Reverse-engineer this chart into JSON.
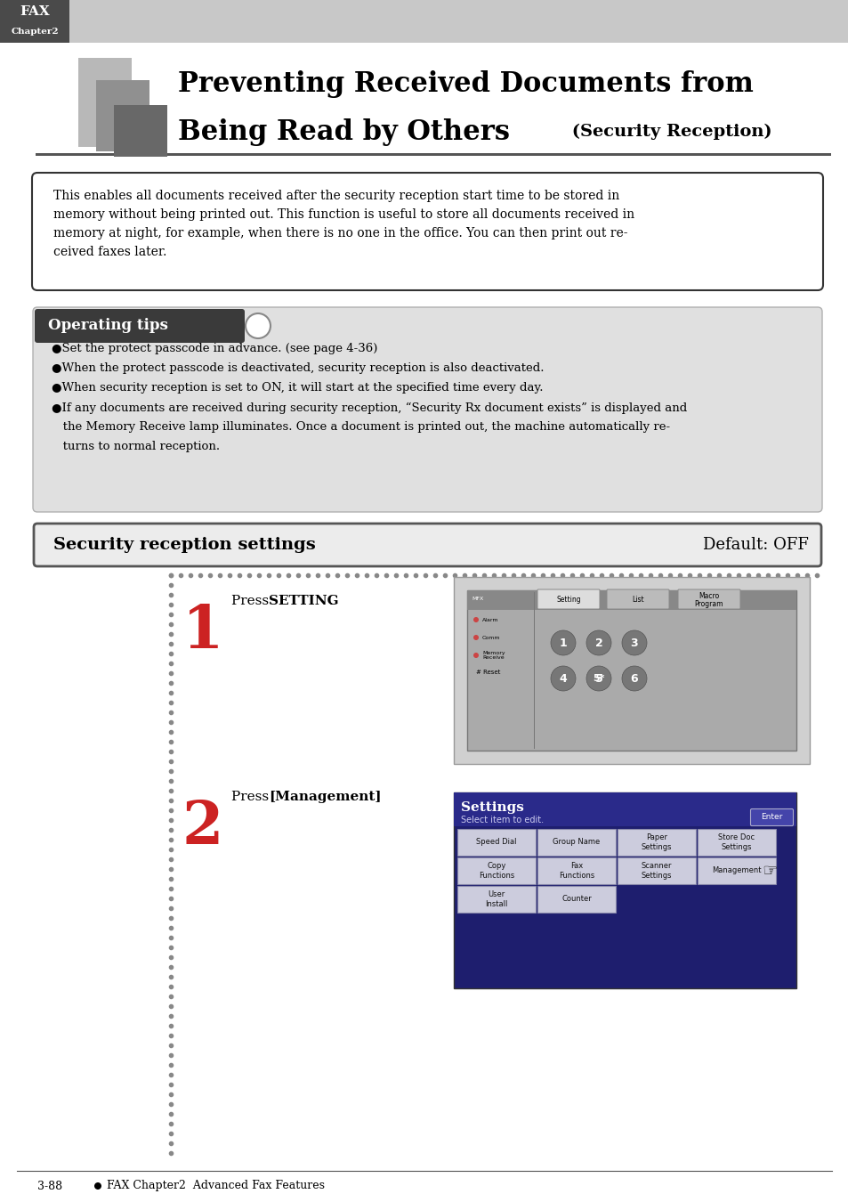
{
  "bg_color": "#ffffff",
  "header_bg_dark": "#555555",
  "header_bg_light": "#cccccc",
  "header_text_line1": "FAX",
  "header_text_line2": "Chapter2",
  "title_line1": "Preventing Received Documents from",
  "title_line2": "Being Read by Others",
  "title_suffix": " (Security Reception)",
  "intro_text_lines": [
    "This enables all documents received after the security reception start time to be stored in",
    "memory without being printed out. This function is useful to store all documents received in",
    "memory at night, for example, when there is no one in the office. You can then print out re-",
    "ceived faxes later."
  ],
  "op_tips_label": "Operating tips",
  "op_tips_bullets": [
    "●Set the protect passcode in advance. (see page 4-36)",
    "●When the protect passcode is deactivated, security reception is also deactivated.",
    "●When security reception is set to ON, it will start at the specified time every day.",
    "●If any documents are received during security reception, “Security Rx document exists” is displayed and",
    "   the Memory Receive lamp illuminates. Once a document is printed out, the machine automatically re-",
    "   turns to normal reception."
  ],
  "section_title": "Security reception settings",
  "section_default": "Default: OFF",
  "step1_num": "1",
  "step1_text_pre": "Press ",
  "step1_text_bold": "SETTING",
  "step1_text_post": ".",
  "step2_num": "2",
  "step2_text_pre": "Press ",
  "step2_text_bold": "[Management]",
  "step2_text_post": ".",
  "footer_left": "3-88",
  "footer_right": "FAX Chapter2 ● Advanced Fax Features"
}
